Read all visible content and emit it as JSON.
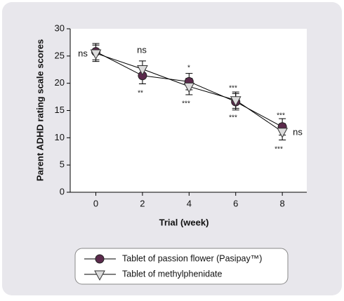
{
  "chart_data": {
    "type": "line",
    "x": [
      0,
      2,
      4,
      6,
      8
    ],
    "x_label": "Trial (week)",
    "y_label": "Parent ADHD rating scale scores",
    "xlim": [
      -1.1,
      9.05
    ],
    "xticks": [
      0,
      2,
      4,
      6,
      8
    ],
    "ylim": [
      0,
      30
    ],
    "yticks": [
      0,
      5,
      10,
      15,
      20,
      25,
      30
    ],
    "series": [
      {
        "name": "Tablet of passion flower (Pasipay™)",
        "color": "#5b2a4c",
        "marker": "circle",
        "values": [
          25.8,
          21.4,
          20.3,
          16.6,
          12.0
        ],
        "errors": [
          1.5,
          1.5,
          1.5,
          1.5,
          1.5
        ]
      },
      {
        "name": "Tablet of methylphenidate",
        "color": "#dcdcdc",
        "marker": "triangle-down",
        "values": [
          25.5,
          22.6,
          19.4,
          16.9,
          11.1
        ],
        "errors": [
          1.5,
          1.5,
          1.5,
          1.5,
          1.5
        ]
      }
    ],
    "annotations": [
      "ns",
      "ns",
      "**",
      "*",
      "***",
      "***",
      "***",
      "***",
      "ns",
      "***"
    ]
  }
}
